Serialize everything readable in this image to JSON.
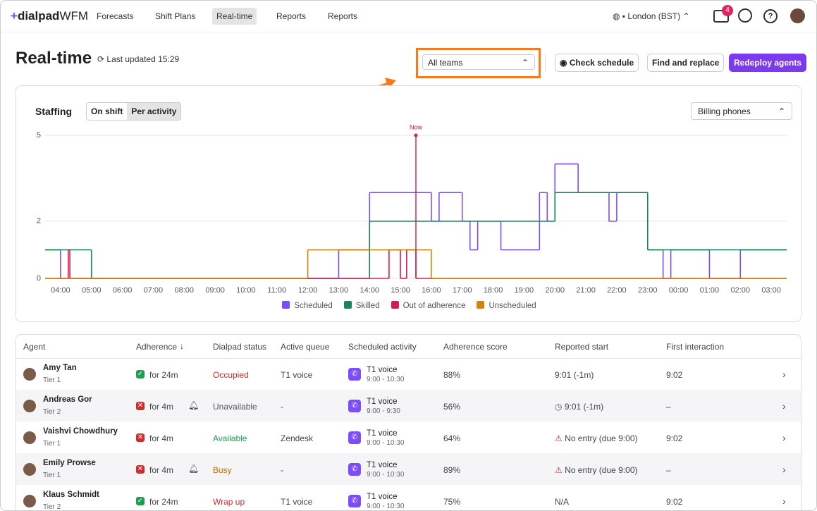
{
  "nav": {
    "logo": "dialpad",
    "logo_suffix": "WFM",
    "items": [
      "Forecasts",
      "Shift Plans",
      "Real-time",
      "Reports",
      "Reports"
    ],
    "location": "London (BST)",
    "notifications": "4"
  },
  "header": {
    "title": "Real-time",
    "last_updated": "Last updated 15:29",
    "team_select": "All teams",
    "buttons": [
      "Check schedule",
      "Find and replace",
      "Redeploy agents"
    ]
  },
  "chart_data": {
    "type": "step",
    "title": "Staffing",
    "toggle": [
      "On shift",
      "Per activity"
    ],
    "queue_select": "Billing phones",
    "xlim": [
      3.5,
      27.5
    ],
    "xticks": [
      {
        "value": 4,
        "label": "04:00"
      },
      {
        "value": 5,
        "label": "05:00"
      },
      {
        "value": 6,
        "label": "06:00"
      },
      {
        "value": 7,
        "label": "07:00"
      },
      {
        "value": 8,
        "label": "08:00"
      },
      {
        "value": 9,
        "label": "09:00"
      },
      {
        "value": 10,
        "label": "10:00"
      },
      {
        "value": 11,
        "label": "11:00"
      },
      {
        "value": 12,
        "label": "12:00"
      },
      {
        "value": 13,
        "label": "13:00"
      },
      {
        "value": 14,
        "label": "14:00"
      },
      {
        "value": 15,
        "label": "15:00"
      },
      {
        "value": 16,
        "label": "16:00"
      },
      {
        "value": 17,
        "label": "17:00"
      },
      {
        "value": 18,
        "label": "18:00"
      },
      {
        "value": 19,
        "label": "19:00"
      },
      {
        "value": 20,
        "label": "20:00"
      },
      {
        "value": 21,
        "label": "21:00"
      },
      {
        "value": 22,
        "label": "22:00"
      },
      {
        "value": 23,
        "label": "23:00"
      },
      {
        "value": 24,
        "label": "00:00"
      },
      {
        "value": 25,
        "label": "01:00"
      },
      {
        "value": 26,
        "label": "02:00"
      },
      {
        "value": 27,
        "label": "03:00"
      }
    ],
    "ylim": [
      0,
      5
    ],
    "yticks": [
      0,
      2,
      5
    ],
    "grid": true,
    "now": {
      "label": "Now",
      "x": 15.5
    },
    "series": [
      {
        "name": "Scheduled",
        "color": "#7c4dff",
        "x": [
          3.5,
          4.0,
          13.0,
          14.0,
          16.0,
          16.25,
          17.0,
          17.25,
          17.5,
          18.25,
          19.5,
          19.75,
          20.0,
          20.75,
          21.75,
          22.0,
          23.0,
          23.5,
          23.75,
          25.0,
          26.0
        ],
        "values": [
          1,
          0,
          1,
          3,
          2,
          3,
          2,
          1,
          2,
          1,
          3,
          2,
          4,
          3,
          2,
          3,
          1,
          0,
          1,
          0,
          1
        ]
      },
      {
        "name": "Skilled",
        "color": "#16875a",
        "x": [
          3.5,
          5.0,
          14.0,
          20.0,
          23.0
        ],
        "values": [
          1,
          0,
          2,
          3,
          1
        ]
      },
      {
        "name": "Out of adherence",
        "color": "#d81b4c",
        "x": [
          3.5,
          4.25,
          4.3,
          14.63,
          15.0,
          15.2,
          15.5
        ],
        "values": [
          0,
          1,
          0,
          1,
          0,
          1,
          0
        ]
      },
      {
        "name": "Unscheduled",
        "color": "#d4820a",
        "x": [
          3.5,
          12.0,
          16.0
        ],
        "values": [
          0,
          1,
          0
        ]
      }
    ]
  },
  "table": {
    "columns": [
      "Agent",
      "Adherence",
      "Dialpad status",
      "Active queue",
      "Scheduled activity",
      "Adherence score",
      "Reported start",
      "First interaction"
    ],
    "rows": [
      [
        "Amy Tan",
        "Tier 1",
        "for 24m",
        "Occupied",
        "T1 voice",
        "T1 voice",
        "9:00 - 10:30",
        "88%",
        "9:01 (-1m)",
        "9:02"
      ],
      [
        "Andreas Gor",
        "Tier 2",
        "for 4m",
        "Unavailable",
        "-",
        "T1 voice",
        "9:00 - 9:30",
        "56%",
        "9:01 (-1m)",
        "–"
      ],
      [
        "Vaishvi Chowdhury",
        "Tier 1",
        "for 4m",
        "Available",
        "Zendesk",
        "T1 voice",
        "9:00 - 10:30",
        "64%",
        "No entry (due 9:00)",
        "9:02"
      ],
      [
        "Emily Prowse",
        "Tier 1",
        "for 4m",
        "Busy",
        "-",
        "T1 voice",
        "9:00 - 10:30",
        "89%",
        "No entry (due 9:00)",
        "–"
      ],
      [
        "Klaus Schmidt",
        "Tier 2",
        "for 24m",
        "Wrap up",
        "T1 voice",
        "T1 voice",
        "9:00 - 10:30",
        "75%",
        "N/A",
        "9:02"
      ]
    ]
  }
}
